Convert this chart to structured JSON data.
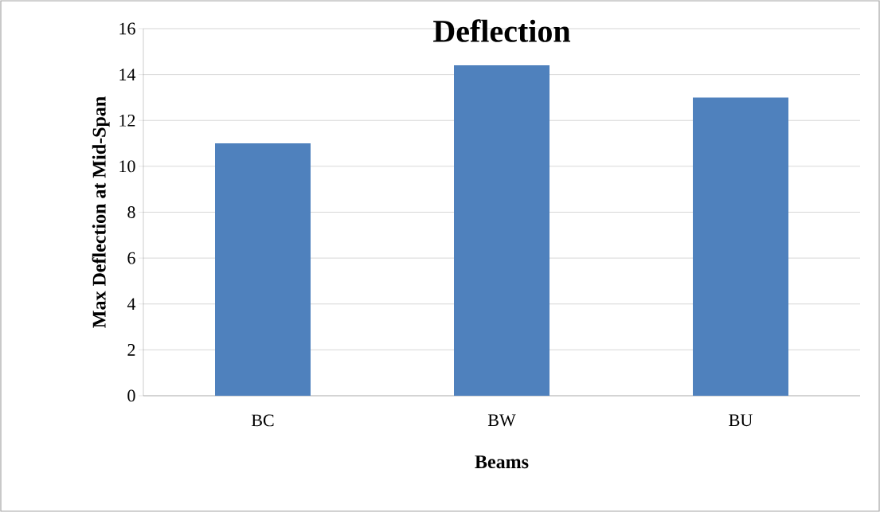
{
  "chart_data": {
    "type": "bar",
    "title": "Deflection",
    "xlabel": "Beams",
    "ylabel": "Max Deflection at Mid-Span",
    "categories": [
      "BC",
      "BW",
      "BU"
    ],
    "values": [
      11,
      14.4,
      13
    ],
    "color": "#4f81bd",
    "ylim": [
      0,
      16
    ],
    "yticks": [
      0,
      2,
      4,
      6,
      8,
      10,
      12,
      14,
      16
    ],
    "grid": "y"
  }
}
